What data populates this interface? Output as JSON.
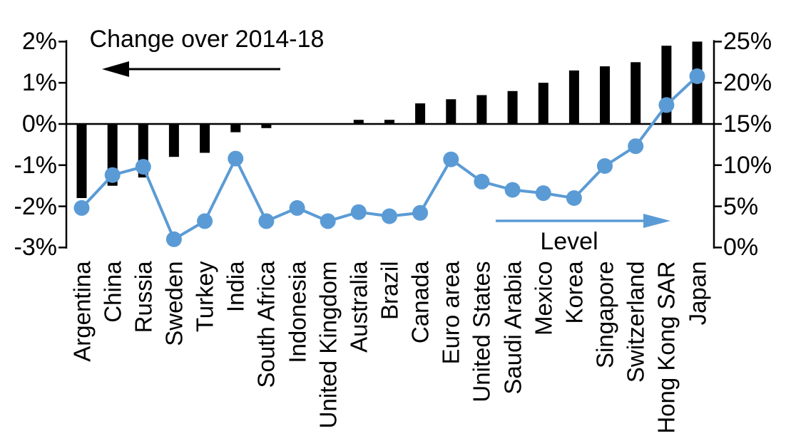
{
  "chart_data": {
    "type": "combo-bar-line-dual-axis",
    "title": "",
    "categories": [
      "Argentina",
      "China",
      "Russia",
      "Sweden",
      "Turkey",
      "India",
      "South Africa",
      "Indonesia",
      "United Kingdom",
      "Australia",
      "Brazil",
      "Canada",
      "Euro area",
      "United States",
      "Saudi Arabia",
      "Mexico",
      "Korea",
      "Singapore",
      "Switzerland",
      "Hong Kong SAR",
      "Japan"
    ],
    "series": [
      {
        "name": "Change over 2014-18",
        "type": "bar",
        "axis": "left",
        "color": "#000000",
        "values": [
          -1.8,
          -1.5,
          -1.3,
          -0.8,
          -0.7,
          -0.2,
          -0.1,
          0,
          0,
          0.1,
          0.1,
          0.5,
          0.6,
          0.7,
          0.8,
          1.0,
          1.3,
          1.4,
          1.5,
          1.9,
          2.0
        ]
      },
      {
        "name": "Level",
        "type": "line",
        "axis": "right",
        "color": "#5B9BD5",
        "values": [
          4.8,
          8.8,
          9.8,
          1.0,
          3.2,
          10.8,
          3.2,
          4.8,
          3.2,
          4.3,
          3.8,
          4.2,
          10.7,
          8.0,
          7.0,
          6.6,
          6.0,
          9.9,
          12.3,
          17.3,
          20.8
        ]
      }
    ],
    "left_axis": {
      "min": -3,
      "max": 2,
      "tick_step": 1,
      "tick_labels": [
        "2%",
        "1%",
        "0%",
        "-1%",
        "-2%",
        "-3%"
      ]
    },
    "right_axis": {
      "min": 0,
      "max": 25,
      "tick_step": 5,
      "tick_labels": [
        "25%",
        "20%",
        "15%",
        "10%",
        "5%",
        "0%"
      ]
    },
    "annotations": {
      "change_label": "Change over 2014-18",
      "change_arrow_direction": "left",
      "change_arrow_color": "#000000",
      "level_label": "Level",
      "level_arrow_direction": "right",
      "level_arrow_color": "#5B9BD5"
    },
    "grid": false,
    "legend_position": "none"
  }
}
